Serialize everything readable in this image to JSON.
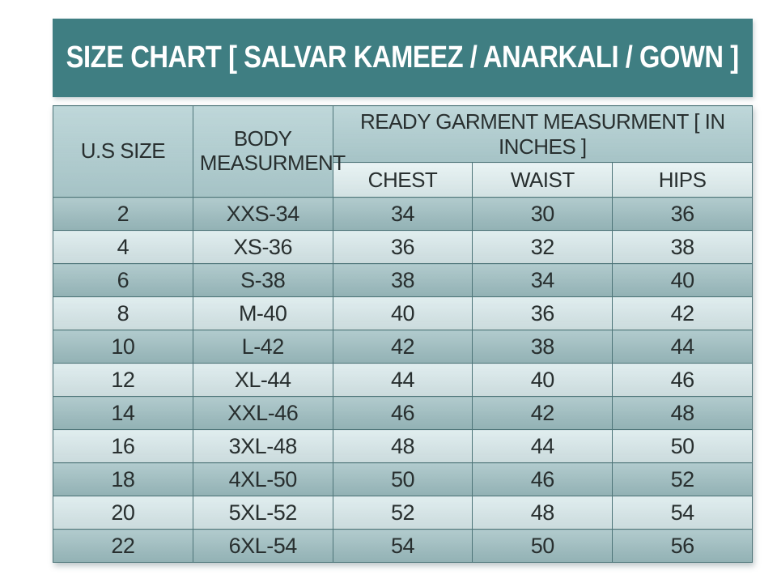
{
  "title": "SIZE CHART [ SALVAR KAMEEZ / ANARKALI / GOWN ]",
  "header": {
    "us_size": "U.S SIZE",
    "body_measurement": "BODY MEASURMENT",
    "garment_group": "READY GARMENT MEASURMENT [ IN INCHES ]",
    "chest": "CHEST",
    "waist": "WAIST",
    "hips": "HIPS"
  },
  "chart_data": {
    "type": "table",
    "title": "SIZE CHART [ SALVAR KAMEEZ / ANARKALI / GOWN ]",
    "columns": [
      "U.S SIZE",
      "BODY MEASURMENT",
      "CHEST",
      "WAIST",
      "HIPS"
    ],
    "column_group": {
      "label": "READY GARMENT MEASURMENT [ IN INCHES ]",
      "spans": [
        "CHEST",
        "WAIST",
        "HIPS"
      ]
    },
    "rows": [
      [
        "2",
        "XXS-34",
        "34",
        "30",
        "36"
      ],
      [
        "4",
        "XS-36",
        "36",
        "32",
        "38"
      ],
      [
        "6",
        "S-38",
        "38",
        "34",
        "40"
      ],
      [
        "8",
        "M-40",
        "40",
        "36",
        "42"
      ],
      [
        "10",
        "L-42",
        "42",
        "38",
        "44"
      ],
      [
        "12",
        "XL-44",
        "44",
        "40",
        "46"
      ],
      [
        "14",
        "XXL-46",
        "46",
        "42",
        "48"
      ],
      [
        "16",
        "3XL-48",
        "48",
        "44",
        "50"
      ],
      [
        "18",
        "4XL-50",
        "50",
        "46",
        "52"
      ],
      [
        "20",
        "5XL-52",
        "52",
        "48",
        "54"
      ],
      [
        "22",
        "6XL-54",
        "54",
        "50",
        "56"
      ]
    ]
  },
  "colors": {
    "title_bar_bg": "#3f7e82",
    "title_text": "#ffffff",
    "header_bg": "#aecdd0",
    "subheader_bg": "#ddedee",
    "row_dark_bg": "#9bbcbf",
    "row_light_bg": "#d7e8ea",
    "border": "#4e7579",
    "text": "#282f2f"
  }
}
